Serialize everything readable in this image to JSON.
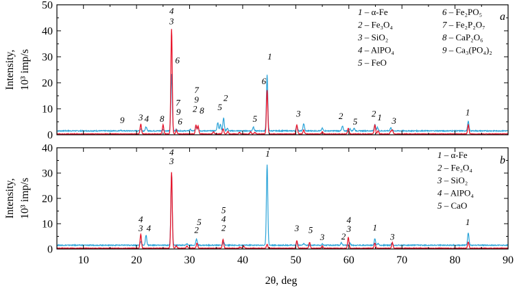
{
  "chart_data": [
    {
      "type": "line",
      "panel": "a",
      "xlabel": "2θ, deg",
      "ylabel_line1": "Intensity,",
      "ylabel_line2": "10³ imp/s",
      "xlim": [
        5,
        90
      ],
      "ylim": [
        0,
        50
      ],
      "yticks": [
        0,
        10,
        20,
        30,
        40,
        50
      ],
      "xticks": [
        10,
        20,
        30,
        40,
        50,
        60,
        70,
        80,
        90
      ],
      "legend": [
        {
          "num": "1",
          "text": "α-Fe"
        },
        {
          "num": "2",
          "text": "Fe₃O₄"
        },
        {
          "num": "3",
          "text": "SiO₂"
        },
        {
          "num": "4",
          "text": "AlPO₄"
        },
        {
          "num": "5",
          "text": "FeO"
        },
        {
          "num": "6",
          "text": "Fe₂PO₅"
        },
        {
          "num": "7",
          "text": "Fe₂P₂O₇"
        },
        {
          "num": "8",
          "text": "CaP₂O₆"
        },
        {
          "num": "9",
          "text": "Ca₃(PO₄)₂"
        }
      ],
      "series": [
        {
          "color": "#2aa3d8",
          "baseline": 1.5,
          "peaks": [
            [
              17,
              0.3
            ],
            [
              20.8,
              0.8
            ],
            [
              21.8,
              1.5
            ],
            [
              25,
              0.5
            ],
            [
              26.6,
              22
            ],
            [
              27.5,
              0.5
            ],
            [
              30.1,
              0.6
            ],
            [
              31.2,
              1.5
            ],
            [
              31.6,
              1.2
            ],
            [
              35.3,
              3.2
            ],
            [
              35.8,
              2.5
            ],
            [
              36.4,
              5
            ],
            [
              37.1,
              1
            ],
            [
              42.0,
              1.5
            ],
            [
              44.6,
              21.5
            ],
            [
              50.2,
              2.0
            ],
            [
              51.5,
              2.8
            ],
            [
              55,
              1.0
            ],
            [
              58.8,
              1.8
            ],
            [
              60.2,
              0.8
            ],
            [
              61,
              1.0
            ],
            [
              64.9,
              2.5
            ],
            [
              65.4,
              1.3
            ],
            [
              67.9,
              1.2
            ],
            [
              82.5,
              3.6
            ]
          ]
        },
        {
          "color": "#e8162c",
          "baseline": 0.3,
          "peaks": [
            [
              20.8,
              3.8
            ],
            [
              25,
              3.5
            ],
            [
              26.6,
              40.5
            ],
            [
              27.5,
              1.5
            ],
            [
              31.2,
              3.5
            ],
            [
              31.6,
              3.0
            ],
            [
              34.5,
              0.8
            ],
            [
              36.3,
              2.0
            ],
            [
              37.2,
              1.0
            ],
            [
              39.4,
              0.6
            ],
            [
              41.5,
              0.8
            ],
            [
              42.3,
              0.6
            ],
            [
              44.6,
              17
            ],
            [
              50.2,
              3.5
            ],
            [
              51.5,
              1.5
            ],
            [
              55,
              0.8
            ],
            [
              59.9,
              2.2
            ],
            [
              64.9,
              3.5
            ],
            [
              65.5,
              1.2
            ],
            [
              67.9,
              1.0
            ],
            [
              68.2,
              1.5
            ],
            [
              82.5,
              3.5
            ]
          ]
        }
      ],
      "peak_labels": [
        {
          "x": 17.3,
          "y": 4.5,
          "text": "9"
        },
        {
          "x": 20.8,
          "y": 5.5,
          "text": "3"
        },
        {
          "x": 21.9,
          "y": 5.0,
          "text": "4"
        },
        {
          "x": 24.8,
          "y": 5.0,
          "text": "8"
        },
        {
          "x": 26.6,
          "y": 46.5,
          "text": "4"
        },
        {
          "x": 26.6,
          "y": 42.5,
          "text": "3"
        },
        {
          "x": 27.7,
          "y": 27.5,
          "text": "6"
        },
        {
          "x": 27.8,
          "y": 11.2,
          "text": "7"
        },
        {
          "x": 27.9,
          "y": 7.6,
          "text": "9"
        },
        {
          "x": 28.2,
          "y": 4.0,
          "text": "6"
        },
        {
          "x": 31.3,
          "y": 16.0,
          "text": "7"
        },
        {
          "x": 31.3,
          "y": 12.4,
          "text": "9"
        },
        {
          "x": 31.0,
          "y": 8.8,
          "text": "2"
        },
        {
          "x": 32.3,
          "y": 8.2,
          "text": "8"
        },
        {
          "x": 35.7,
          "y": 9.5,
          "text": "5"
        },
        {
          "x": 36.8,
          "y": 13.0,
          "text": "2"
        },
        {
          "x": 42.3,
          "y": 5.0,
          "text": "5"
        },
        {
          "x": 44.0,
          "y": 19.5,
          "text": "6"
        },
        {
          "x": 45.1,
          "y": 29.0,
          "text": "1"
        },
        {
          "x": 50.5,
          "y": 7.0,
          "text": "3"
        },
        {
          "x": 58.5,
          "y": 6.0,
          "text": "2"
        },
        {
          "x": 61.2,
          "y": 4.0,
          "text": "5"
        },
        {
          "x": 64.7,
          "y": 7.0,
          "text": "2"
        },
        {
          "x": 65.8,
          "y": 5.5,
          "text": "1"
        },
        {
          "x": 68.5,
          "y": 4.2,
          "text": "3"
        },
        {
          "x": 82.4,
          "y": 7.5,
          "text": "1"
        }
      ]
    },
    {
      "type": "line",
      "panel": "b",
      "xlabel": "2θ, deg",
      "ylabel_line1": "Intensity,",
      "ylabel_line2": "10³ imp/s",
      "xlim": [
        5,
        90
      ],
      "ylim": [
        0,
        40
      ],
      "yticks": [
        0,
        10,
        20,
        30,
        40
      ],
      "xticks": [
        10,
        20,
        30,
        40,
        50,
        60,
        70,
        80,
        90
      ],
      "legend": [
        {
          "num": "1",
          "text": "α-Fe"
        },
        {
          "num": "2",
          "text": "Fe₃O₄"
        },
        {
          "num": "3",
          "text": "SiO₂"
        },
        {
          "num": "4",
          "text": "AlPO₄"
        },
        {
          "num": "5",
          "text": "CaO"
        }
      ],
      "series": [
        {
          "color": "#2aa3d8",
          "baseline": 1.5,
          "peaks": [
            [
              20.8,
              1.5
            ],
            [
              21.8,
              4.0
            ],
            [
              26.6,
              28.5
            ],
            [
              29.5,
              0.5
            ],
            [
              31.3,
              2.5
            ],
            [
              36.4,
              1.2
            ],
            [
              44.6,
              32
            ],
            [
              50.2,
              1.2
            ],
            [
              51.5,
              0.6
            ],
            [
              55,
              0.5
            ],
            [
              58.6,
              1.0
            ],
            [
              60.2,
              0.8
            ],
            [
              64.9,
              2.5
            ],
            [
              65.5,
              0.7
            ],
            [
              68.1,
              0.8
            ],
            [
              82.5,
              4.8
            ]
          ]
        },
        {
          "color": "#e8162c",
          "baseline": 0.3,
          "peaks": [
            [
              20.8,
              5.5
            ],
            [
              26.6,
              30
            ],
            [
              27.5,
              1.0
            ],
            [
              29.5,
              1.0
            ],
            [
              31.4,
              2.0
            ],
            [
              36.3,
              3.5
            ],
            [
              39.5,
              0.5
            ],
            [
              40.2,
              0.8
            ],
            [
              44.6,
              1.5
            ],
            [
              50.2,
              3.0
            ],
            [
              52.6,
              2.3
            ],
            [
              55,
              1.0
            ],
            [
              59.9,
              4.3
            ],
            [
              64.9,
              2.0
            ],
            [
              68.2,
              2.2
            ],
            [
              82.5,
              2.5
            ]
          ]
        }
      ],
      "peak_labels": [
        {
          "x": 20.8,
          "y": 10.5,
          "text": "4"
        },
        {
          "x": 20.8,
          "y": 7.0,
          "text": "3"
        },
        {
          "x": 22.3,
          "y": 7.0,
          "text": "4"
        },
        {
          "x": 26.6,
          "y": 37.0,
          "text": "4"
        },
        {
          "x": 26.6,
          "y": 33.5,
          "text": "3"
        },
        {
          "x": 31.8,
          "y": 9.5,
          "text": "5"
        },
        {
          "x": 31.3,
          "y": 6.3,
          "text": "2"
        },
        {
          "x": 36.4,
          "y": 14.2,
          "text": "5"
        },
        {
          "x": 36.4,
          "y": 10.7,
          "text": "4"
        },
        {
          "x": 36.4,
          "y": 7.2,
          "text": "2"
        },
        {
          "x": 44.7,
          "y": 36.5,
          "text": "1"
        },
        {
          "x": 50.2,
          "y": 7.0,
          "text": "3"
        },
        {
          "x": 52.8,
          "y": 6.3,
          "text": "5"
        },
        {
          "x": 55.0,
          "y": 3.5,
          "text": "3"
        },
        {
          "x": 59.0,
          "y": 3.8,
          "text": "2"
        },
        {
          "x": 60.0,
          "y": 10.3,
          "text": "4"
        },
        {
          "x": 60.0,
          "y": 6.8,
          "text": "3"
        },
        {
          "x": 64.9,
          "y": 7.3,
          "text": "1"
        },
        {
          "x": 68.2,
          "y": 3.6,
          "text": "3"
        },
        {
          "x": 82.4,
          "y": 9.5,
          "text": "1"
        }
      ]
    }
  ]
}
